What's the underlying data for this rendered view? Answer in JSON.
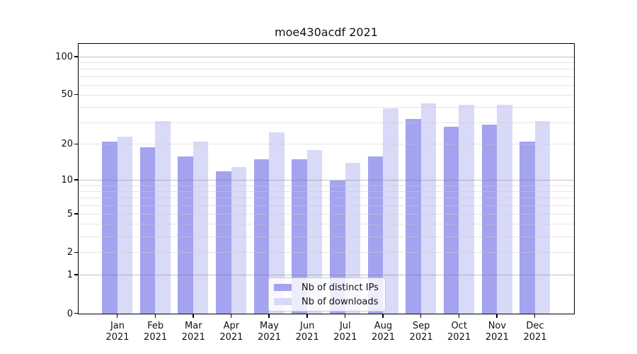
{
  "title": "moe430acdf 2021",
  "chart_data": {
    "type": "bar",
    "title": "moe430acdf 2021",
    "categories": [
      "Jan",
      "Feb",
      "Mar",
      "Apr",
      "May",
      "Jun",
      "Jul",
      "Aug",
      "Sep",
      "Oct",
      "Nov",
      "Dec"
    ],
    "year_label": "2021",
    "series": [
      {
        "name": "Nb of distinct IPs",
        "color": "#a3a3ef",
        "values": [
          21,
          19,
          16,
          12,
          15,
          15,
          10,
          16,
          32,
          28,
          29,
          21
        ]
      },
      {
        "name": "Nb of downloads",
        "color": "#d9d9f8",
        "values": [
          23,
          31,
          21,
          13,
          25,
          18,
          14,
          39,
          43,
          42,
          42,
          31
        ]
      }
    ],
    "xlabel": "",
    "ylabel": "",
    "y_scale": "log1p",
    "ylim": [
      0,
      125
    ],
    "y_ticks": [
      0,
      1,
      2,
      5,
      10,
      20,
      50,
      100
    ],
    "grid": true,
    "grid_minor_values": [
      2,
      3,
      4,
      5,
      6,
      7,
      8,
      9,
      20,
      30,
      40,
      50,
      60,
      70,
      80,
      90
    ],
    "grid_major_values": [
      1,
      10,
      100
    ],
    "legend_position": "lower center",
    "colors": {
      "axis": "#000000",
      "grid_major": "#c2c2c2",
      "grid_minor": "#e8e8e8"
    }
  }
}
